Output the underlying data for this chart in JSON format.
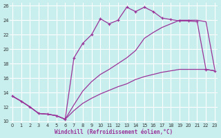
{
  "xlabel": "Windchill (Refroidissement éolien,°C)",
  "bg_color": "#c8eeee",
  "grid_color": "#b0dede",
  "line_color": "#993399",
  "xlim_min": -0.3,
  "xlim_max": 23.3,
  "ylim_min": 9.8,
  "ylim_max": 26.4,
  "xticks": [
    0,
    1,
    2,
    3,
    4,
    5,
    6,
    7,
    8,
    9,
    10,
    11,
    12,
    13,
    14,
    15,
    16,
    17,
    18,
    19,
    20,
    21,
    22,
    23
  ],
  "yticks": [
    10,
    12,
    14,
    16,
    18,
    20,
    22,
    24,
    26
  ],
  "series1_x": [
    0,
    1,
    2,
    3,
    4,
    5,
    6,
    7,
    8,
    9,
    10,
    11,
    12,
    13,
    14,
    15,
    16,
    17,
    18,
    19,
    20,
    21,
    22,
    23
  ],
  "series1_y": [
    13.5,
    12.8,
    12.0,
    11.1,
    11.0,
    10.8,
    10.3,
    18.8,
    20.8,
    22.0,
    24.2,
    23.5,
    24.0,
    25.8,
    25.2,
    25.8,
    25.2,
    24.3,
    24.1,
    23.9,
    23.9,
    23.8,
    17.2,
    17.0
  ],
  "series2_x": [
    0,
    1,
    2,
    3,
    4,
    5,
    6,
    7,
    8,
    9,
    10,
    11,
    12,
    13,
    14,
    15,
    16,
    17,
    18,
    19,
    20,
    21,
    22,
    23
  ],
  "series2_y": [
    13.5,
    12.8,
    12.0,
    11.1,
    11.0,
    10.8,
    10.3,
    12.3,
    14.2,
    15.5,
    16.5,
    17.2,
    18.0,
    18.8,
    19.8,
    21.5,
    22.3,
    23.0,
    23.5,
    24.0,
    24.0,
    24.0,
    23.8,
    17.2
  ],
  "series3_x": [
    0,
    1,
    2,
    3,
    4,
    5,
    6,
    7,
    8,
    9,
    10,
    11,
    12,
    13,
    14,
    15,
    16,
    17,
    18,
    19,
    20,
    21,
    22,
    23
  ],
  "series3_y": [
    13.5,
    12.8,
    12.0,
    11.1,
    11.0,
    10.8,
    10.3,
    11.5,
    12.5,
    13.2,
    13.8,
    14.3,
    14.8,
    15.2,
    15.8,
    16.2,
    16.5,
    16.8,
    17.0,
    17.2,
    17.2,
    17.2,
    17.2,
    17.0
  ]
}
